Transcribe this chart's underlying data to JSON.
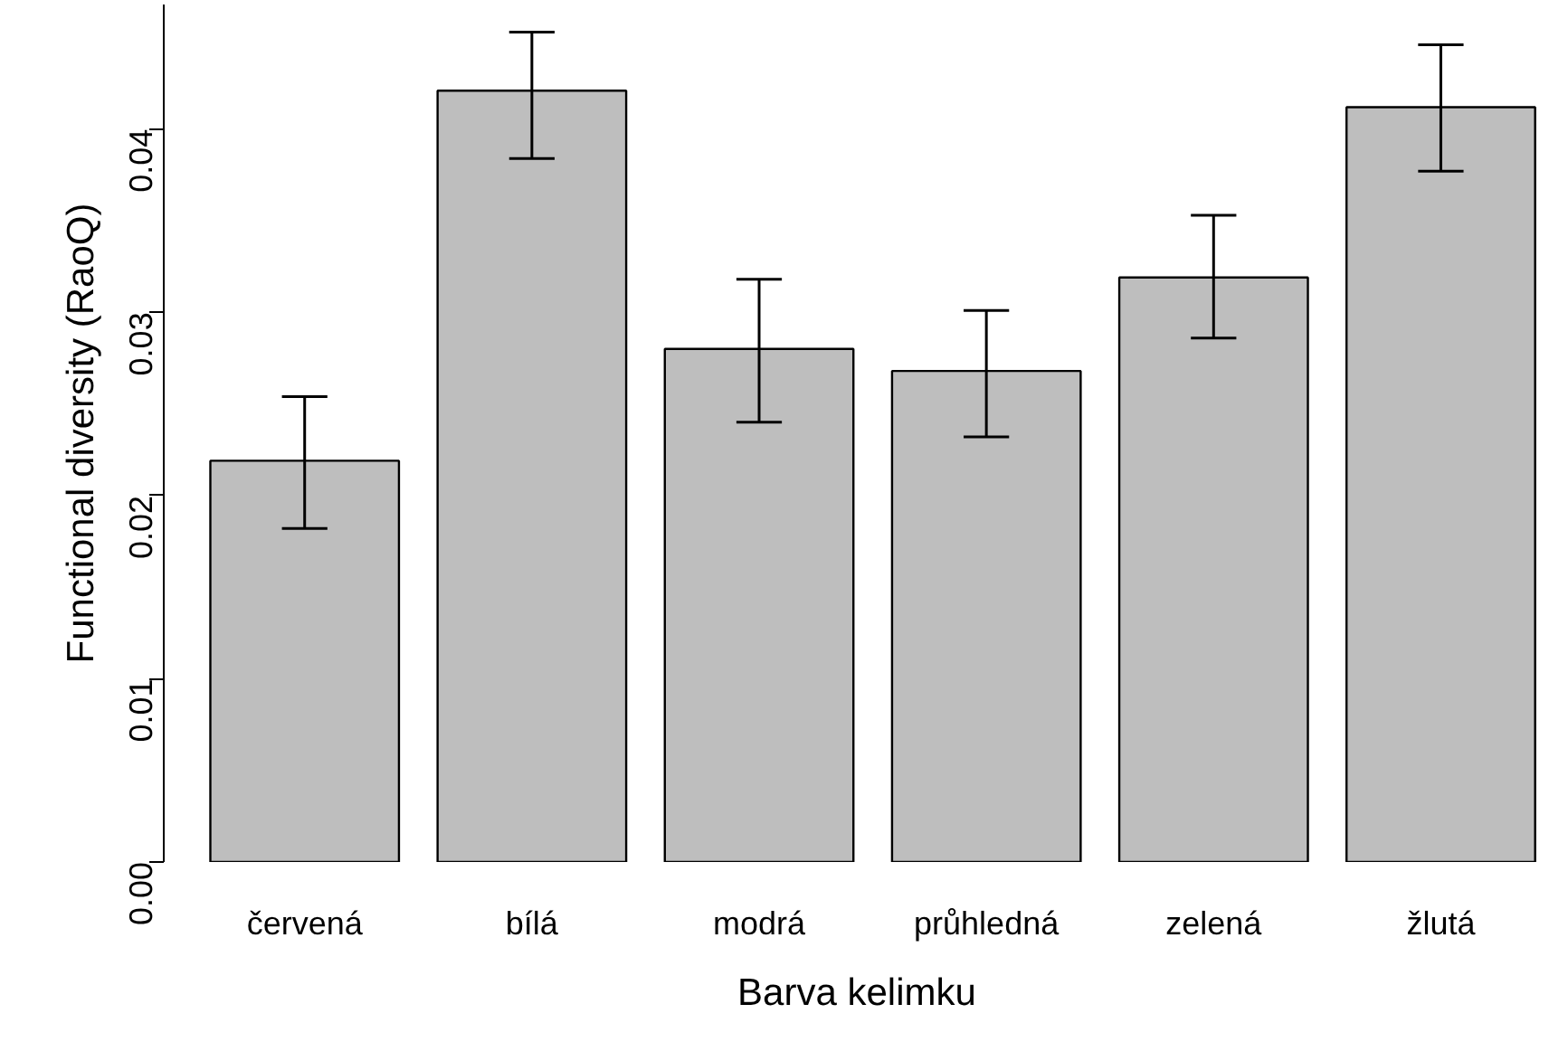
{
  "chart_data": {
    "type": "bar",
    "xlabel": "Barva kelimku",
    "ylabel": "Functional diversity (RaoQ)",
    "categories": [
      "červená",
      "bílá",
      "modrá",
      "průhledná",
      "zelená",
      "žlutá"
    ],
    "values": [
      0.0219,
      0.0421,
      0.028,
      0.0268,
      0.0319,
      0.0412
    ],
    "errors": [
      [
        0.0182,
        0.0254
      ],
      [
        0.0384,
        0.0453
      ],
      [
        0.024,
        0.0318
      ],
      [
        0.0232,
        0.0301
      ],
      [
        0.0286,
        0.0353
      ],
      [
        0.0377,
        0.0446
      ]
    ],
    "color": "#bebebe",
    "ylim": [
      0,
      0.0468
    ],
    "yticks": [
      {
        "value": 0,
        "label": "0.00"
      },
      {
        "value": 0.01,
        "label": "0.01"
      },
      {
        "value": 0.02,
        "label": "0.02"
      },
      {
        "value": 0.03,
        "label": "0.03"
      },
      {
        "value": 0.04,
        "label": "0.04"
      }
    ],
    "grid": false
  }
}
